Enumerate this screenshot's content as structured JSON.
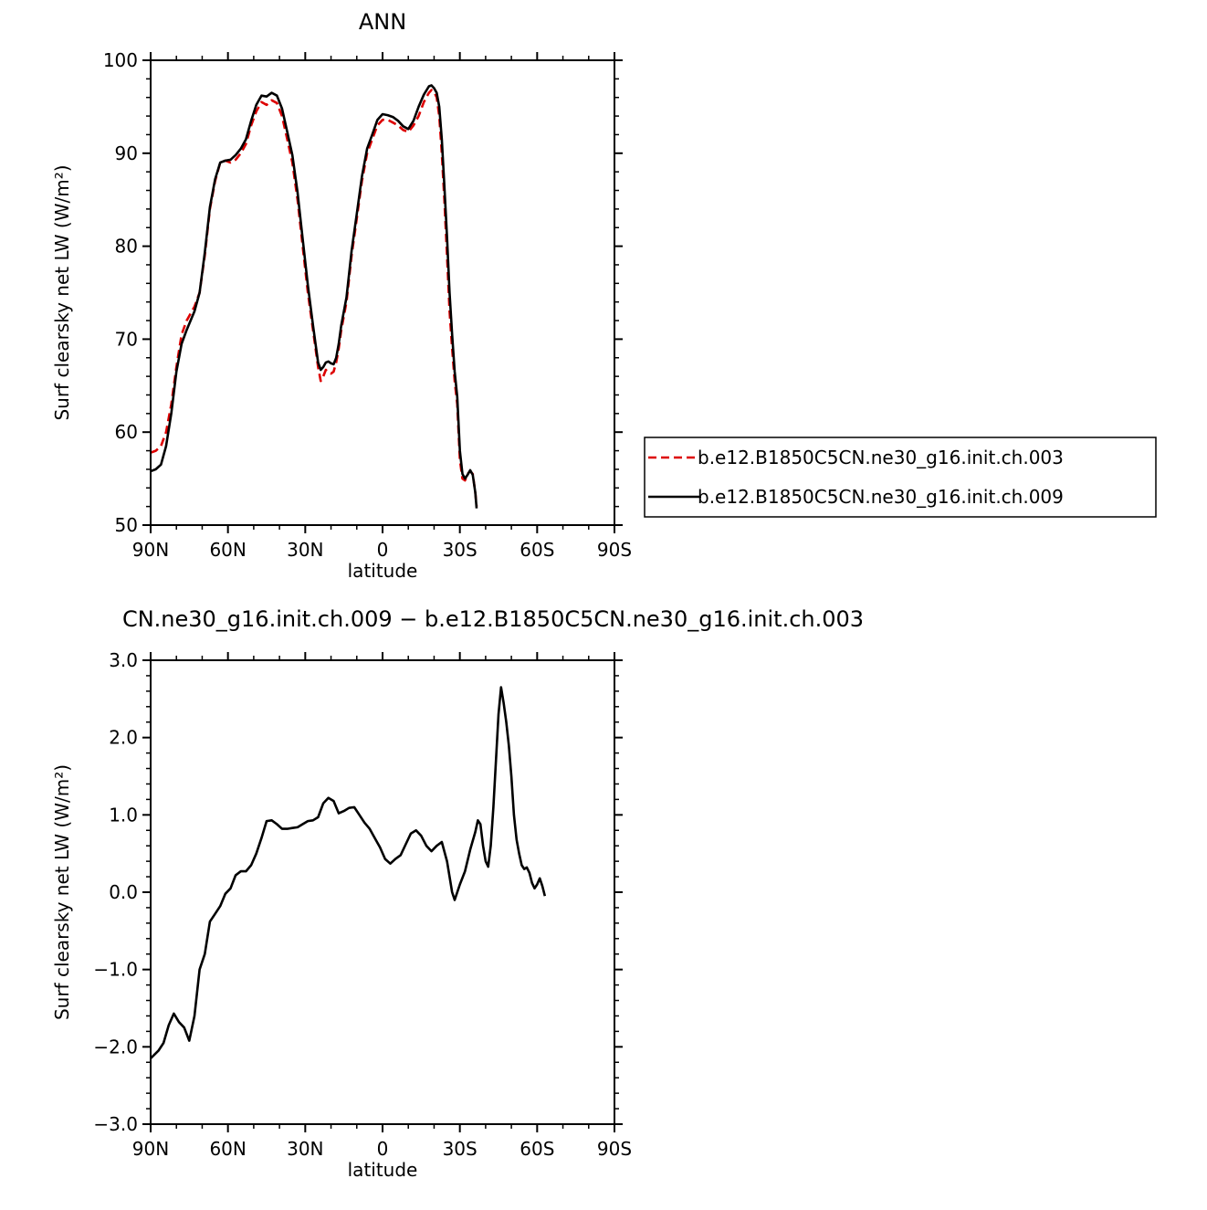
{
  "chart_data": [
    {
      "type": "line",
      "title": "ANN",
      "xlabel": "latitude",
      "ylabel": "Surf clearsky net LW (W/m²)",
      "xlim": [
        90,
        -90
      ],
      "ylim": [
        50,
        100
      ],
      "x_ticks": [
        {
          "value": 90,
          "label": "90N"
        },
        {
          "value": 60,
          "label": "60N"
        },
        {
          "value": 30,
          "label": "30N"
        },
        {
          "value": 0,
          "label": "0"
        },
        {
          "value": -30,
          "label": "30S"
        },
        {
          "value": -60,
          "label": "60S"
        },
        {
          "value": -90,
          "label": "90S"
        }
      ],
      "y_ticks": [
        {
          "value": 50,
          "label": "50"
        },
        {
          "value": 60,
          "label": "60"
        },
        {
          "value": 70,
          "label": "70"
        },
        {
          "value": 80,
          "label": "80"
        },
        {
          "value": 90,
          "label": "90"
        },
        {
          "value": 100,
          "label": "100"
        }
      ],
      "legend_position": "right",
      "series": [
        {
          "name": "b.e12.B1850C5CN.ne30_g16.init.ch.003",
          "color": "#dd0000",
          "style": "dashed",
          "points": [
            [
              90,
              57.8
            ],
            [
              88,
              58
            ],
            [
              86,
              58.5
            ],
            [
              84,
              60
            ],
            [
              82,
              63
            ],
            [
              80,
              67
            ],
            [
              78,
              70.5
            ],
            [
              76,
              72
            ],
            [
              73,
              73.5
            ],
            [
              71,
              75
            ],
            [
              69,
              79
            ],
            [
              67,
              84
            ],
            [
              65,
              87
            ],
            [
              63,
              89
            ],
            [
              61,
              89.2
            ],
            [
              59,
              89
            ],
            [
              57,
              89.3
            ],
            [
              55,
              90
            ],
            [
              53,
              91
            ],
            [
              51,
              93
            ],
            [
              49,
              94.5
            ],
            [
              47,
              95.5
            ],
            [
              45,
              95.2
            ],
            [
              43,
              95.7
            ],
            [
              41,
              95.4
            ],
            [
              39,
              94
            ],
            [
              37,
              91.5
            ],
            [
              35,
              89
            ],
            [
              33,
              85
            ],
            [
              31,
              80
            ],
            [
              29,
              75
            ],
            [
              27,
              71
            ],
            [
              26,
              69
            ],
            [
              25,
              67
            ],
            [
              24,
              65.5
            ],
            [
              23,
              66
            ],
            [
              22,
              66.7
            ],
            [
              21,
              66.4
            ],
            [
              20,
              66.3
            ],
            [
              19,
              66.5
            ],
            [
              18,
              67.5
            ],
            [
              17,
              69
            ],
            [
              16,
              71
            ],
            [
              14,
              74
            ],
            [
              12,
              79
            ],
            [
              10,
              83
            ],
            [
              8,
              87
            ],
            [
              6,
              90
            ],
            [
              4,
              91.5
            ],
            [
              2,
              93
            ],
            [
              0,
              93.6
            ],
            [
              -2,
              93.6
            ],
            [
              -4,
              93.3
            ],
            [
              -6,
              93
            ],
            [
              -8,
              92.5
            ],
            [
              -10,
              92.3
            ],
            [
              -12,
              93
            ],
            [
              -14,
              94
            ],
            [
              -16,
              95.5
            ],
            [
              -18,
              96.5
            ],
            [
              -19,
              96.8
            ],
            [
              -20,
              96.6
            ],
            [
              -21,
              96
            ],
            [
              -22,
              94
            ],
            [
              -23,
              90
            ],
            [
              -24,
              85
            ],
            [
              -25,
              79
            ],
            [
              -26,
              73
            ],
            [
              -27,
              69
            ],
            [
              -28,
              65.5
            ],
            [
              -29,
              63
            ],
            [
              -30,
              57
            ],
            [
              -31,
              55
            ],
            [
              -32,
              54.8
            ],
            [
              -33,
              55.5
            ],
            [
              -34,
              55.8
            ],
            [
              -35,
              55.5
            ],
            [
              -36,
              53.5
            ],
            [
              -36.5,
              52
            ]
          ]
        },
        {
          "name": "b.e12.B1850C5CN.ne30_g16.init.ch.009",
          "color": "#000000",
          "style": "solid",
          "points": [
            [
              90,
              55.8
            ],
            [
              88,
              56
            ],
            [
              86,
              56.5
            ],
            [
              84,
              58.5
            ],
            [
              82,
              62
            ],
            [
              80,
              66.5
            ],
            [
              78,
              69.5
            ],
            [
              76,
              71
            ],
            [
              73,
              73
            ],
            [
              71,
              75
            ],
            [
              69,
              79.3
            ],
            [
              67,
              84.2
            ],
            [
              65,
              87.2
            ],
            [
              63,
              89
            ],
            [
              61,
              89.2
            ],
            [
              59,
              89.3
            ],
            [
              57,
              89.8
            ],
            [
              55,
              90.5
            ],
            [
              53,
              91.5
            ],
            [
              51,
              93.5
            ],
            [
              49,
              95.2
            ],
            [
              47,
              96.2
            ],
            [
              45,
              96.1
            ],
            [
              43,
              96.5
            ],
            [
              41,
              96.2
            ],
            [
              39,
              94.8
            ],
            [
              37,
              92.3
            ],
            [
              35,
              89.8
            ],
            [
              33,
              85.8
            ],
            [
              31,
              80.8
            ],
            [
              29,
              75.8
            ],
            [
              27,
              71.5
            ],
            [
              26,
              69.5
            ],
            [
              25,
              67.5
            ],
            [
              24,
              66.7
            ],
            [
              23,
              67
            ],
            [
              22,
              67.5
            ],
            [
              21,
              67.6
            ],
            [
              20,
              67.4
            ],
            [
              19,
              67.3
            ],
            [
              18,
              68
            ],
            [
              17,
              69.5
            ],
            [
              16,
              71.5
            ],
            [
              14,
              74.5
            ],
            [
              12,
              79.5
            ],
            [
              10,
              83.5
            ],
            [
              8,
              87.5
            ],
            [
              6,
              90.5
            ],
            [
              4,
              92
            ],
            [
              2,
              93.6
            ],
            [
              0,
              94.2
            ],
            [
              -2,
              94.1
            ],
            [
              -4,
              93.9
            ],
            [
              -6,
              93.5
            ],
            [
              -8,
              92.9
            ],
            [
              -10,
              92.6
            ],
            [
              -12,
              93.5
            ],
            [
              -14,
              95
            ],
            [
              -16,
              96.3
            ],
            [
              -18,
              97.2
            ],
            [
              -19,
              97.3
            ],
            [
              -20,
              97
            ],
            [
              -21,
              96.5
            ],
            [
              -22,
              95
            ],
            [
              -23,
              91.5
            ],
            [
              -24,
              86.5
            ],
            [
              -25,
              81
            ],
            [
              -26,
              75
            ],
            [
              -27,
              70.5
            ],
            [
              -28,
              66.5
            ],
            [
              -29,
              63.8
            ],
            [
              -30,
              58
            ],
            [
              -31,
              55.5
            ],
            [
              -32,
              55
            ],
            [
              -33,
              55.4
            ],
            [
              -34,
              55.9
            ],
            [
              -35,
              55.4
            ],
            [
              -36,
              53.5
            ],
            [
              -36.5,
              51.8
            ]
          ]
        }
      ]
    },
    {
      "type": "line",
      "title": "CN.ne30_g16.init.ch.009 − b.e12.B1850C5CN.ne30_g16.init.ch.003",
      "xlabel": "latitude",
      "ylabel": "Surf clearsky net LW (W/m²)",
      "xlim": [
        90,
        -90
      ],
      "ylim": [
        -3.0,
        3.0
      ],
      "x_ticks": [
        {
          "value": 90,
          "label": "90N"
        },
        {
          "value": 60,
          "label": "60N"
        },
        {
          "value": 30,
          "label": "30N"
        },
        {
          "value": 0,
          "label": "0"
        },
        {
          "value": -30,
          "label": "30S"
        },
        {
          "value": -60,
          "label": "60S"
        },
        {
          "value": -90,
          "label": "90S"
        }
      ],
      "y_ticks": [
        {
          "value": -3.0,
          "label": "−3.0"
        },
        {
          "value": -2.0,
          "label": "−2.0"
        },
        {
          "value": -1.0,
          "label": "−1.0"
        },
        {
          "value": 0.0,
          "label": "0.0"
        },
        {
          "value": 1.0,
          "label": "1.0"
        },
        {
          "value": 2.0,
          "label": "2.0"
        },
        {
          "value": 3.0,
          "label": "3.0"
        }
      ],
      "series": [
        {
          "name": "",
          "color": "#000000",
          "style": "solid",
          "points": [
            [
              90,
              -2.15
            ],
            [
              87,
              -2.05
            ],
            [
              85,
              -1.95
            ],
            [
              83,
              -1.72
            ],
            [
              81,
              -1.57
            ],
            [
              79,
              -1.68
            ],
            [
              77,
              -1.75
            ],
            [
              75,
              -1.92
            ],
            [
              73,
              -1.6
            ],
            [
              71,
              -1.0
            ],
            [
              69,
              -0.8
            ],
            [
              67,
              -0.38
            ],
            [
              65,
              -0.28
            ],
            [
              63,
              -0.18
            ],
            [
              61,
              -0.02
            ],
            [
              59,
              0.05
            ],
            [
              57,
              0.22
            ],
            [
              55,
              0.27
            ],
            [
              53,
              0.27
            ],
            [
              51,
              0.35
            ],
            [
              49,
              0.5
            ],
            [
              47,
              0.7
            ],
            [
              45,
              0.92
            ],
            [
              43,
              0.93
            ],
            [
              41,
              0.88
            ],
            [
              39,
              0.82
            ],
            [
              37,
              0.82
            ],
            [
              35,
              0.83
            ],
            [
              33,
              0.84
            ],
            [
              31,
              0.88
            ],
            [
              29,
              0.92
            ],
            [
              27,
              0.93
            ],
            [
              25,
              0.97
            ],
            [
              23,
              1.15
            ],
            [
              21,
              1.22
            ],
            [
              19,
              1.18
            ],
            [
              17,
              1.02
            ],
            [
              15,
              1.05
            ],
            [
              13,
              1.09
            ],
            [
              11,
              1.1
            ],
            [
              9,
              1.0
            ],
            [
              7,
              0.9
            ],
            [
              5,
              0.82
            ],
            [
              3,
              0.7
            ],
            [
              1,
              0.58
            ],
            [
              -1,
              0.43
            ],
            [
              -3,
              0.37
            ],
            [
              -5,
              0.43
            ],
            [
              -7,
              0.48
            ],
            [
              -9,
              0.62
            ],
            [
              -11,
              0.76
            ],
            [
              -13,
              0.8
            ],
            [
              -15,
              0.73
            ],
            [
              -17,
              0.6
            ],
            [
              -19,
              0.53
            ],
            [
              -21,
              0.6
            ],
            [
              -23,
              0.65
            ],
            [
              -25,
              0.4
            ],
            [
              -27,
              0.0
            ],
            [
              -28,
              -0.1
            ],
            [
              -30,
              0.1
            ],
            [
              -32,
              0.27
            ],
            [
              -34,
              0.55
            ],
            [
              -36,
              0.78
            ],
            [
              -37,
              0.93
            ],
            [
              -38,
              0.88
            ],
            [
              -39,
              0.6
            ],
            [
              -40,
              0.4
            ],
            [
              -41,
              0.33
            ],
            [
              -42,
              0.6
            ],
            [
              -43,
              1.1
            ],
            [
              -44,
              1.7
            ],
            [
              -45,
              2.3
            ],
            [
              -46,
              2.65
            ],
            [
              -47,
              2.45
            ],
            [
              -48,
              2.2
            ],
            [
              -49,
              1.9
            ],
            [
              -50,
              1.5
            ],
            [
              -51,
              1.0
            ],
            [
              -52,
              0.68
            ],
            [
              -53,
              0.5
            ],
            [
              -54,
              0.35
            ],
            [
              -55,
              0.3
            ],
            [
              -56,
              0.32
            ],
            [
              -57,
              0.25
            ],
            [
              -58,
              0.12
            ],
            [
              -59,
              0.05
            ],
            [
              -60,
              0.1
            ],
            [
              -61,
              0.18
            ],
            [
              -62,
              0.08
            ],
            [
              -63,
              -0.05
            ]
          ]
        }
      ]
    }
  ]
}
